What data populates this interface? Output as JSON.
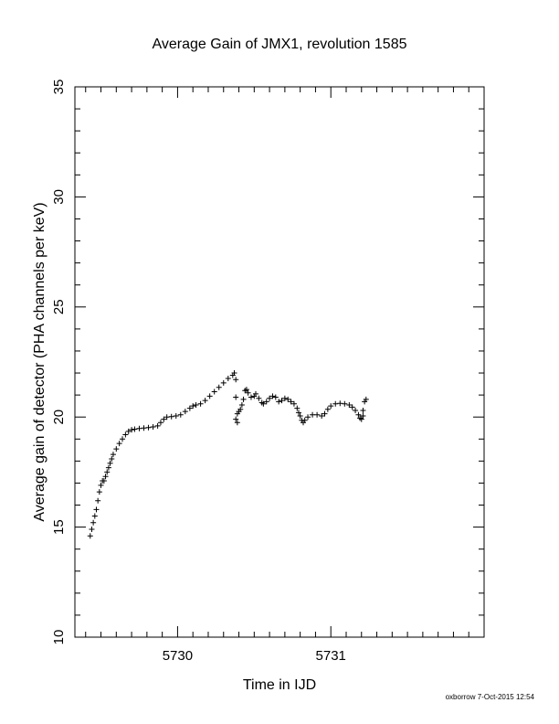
{
  "chart_data": {
    "type": "scatter",
    "title": "Average Gain of JMX1, revolution 1585",
    "xlabel": "Time in IJD",
    "ylabel": "Average gain of detector (PHA channels per keV)",
    "xlim": [
      5729.33,
      5732.0
    ],
    "ylim": [
      10,
      35
    ],
    "x_ticks": [
      5730,
      5731
    ],
    "y_ticks": [
      10,
      15,
      20,
      25,
      30,
      35
    ],
    "grid": false,
    "marker": "+",
    "color": "#000000",
    "series": [
      {
        "points": [
          [
            5729.43,
            14.6
          ],
          [
            5729.44,
            14.9
          ],
          [
            5729.45,
            15.2
          ],
          [
            5729.46,
            15.5
          ],
          [
            5729.47,
            15.8
          ],
          [
            5729.48,
            16.2
          ],
          [
            5729.49,
            16.6
          ],
          [
            5729.5,
            16.9
          ],
          [
            5729.51,
            17.1
          ],
          [
            5729.52,
            17.1
          ],
          [
            5729.53,
            17.3
          ],
          [
            5729.54,
            17.5
          ],
          [
            5729.55,
            17.7
          ],
          [
            5729.56,
            17.9
          ],
          [
            5729.57,
            18.1
          ],
          [
            5729.58,
            18.3
          ],
          [
            5729.6,
            18.55
          ],
          [
            5729.62,
            18.8
          ],
          [
            5729.64,
            19.0
          ],
          [
            5729.66,
            19.2
          ],
          [
            5729.68,
            19.35
          ],
          [
            5729.7,
            19.42
          ],
          [
            5729.72,
            19.45
          ],
          [
            5729.75,
            19.48
          ],
          [
            5729.78,
            19.5
          ],
          [
            5729.81,
            19.52
          ],
          [
            5729.84,
            19.55
          ],
          [
            5729.87,
            19.6
          ],
          [
            5729.89,
            19.75
          ],
          [
            5729.91,
            19.9
          ],
          [
            5729.93,
            20.0
          ],
          [
            5729.96,
            20.02
          ],
          [
            5729.99,
            20.05
          ],
          [
            5730.02,
            20.1
          ],
          [
            5730.05,
            20.25
          ],
          [
            5730.08,
            20.4
          ],
          [
            5730.1,
            20.5
          ],
          [
            5730.12,
            20.55
          ],
          [
            5730.15,
            20.6
          ],
          [
            5730.18,
            20.75
          ],
          [
            5730.21,
            20.95
          ],
          [
            5730.24,
            21.15
          ],
          [
            5730.27,
            21.35
          ],
          [
            5730.3,
            21.55
          ],
          [
            5730.33,
            21.75
          ],
          [
            5730.36,
            21.9
          ],
          [
            5730.37,
            22.0
          ],
          [
            5730.38,
            21.7
          ],
          [
            5730.38,
            20.9
          ],
          [
            5730.38,
            19.9
          ],
          [
            5730.39,
            19.75
          ],
          [
            5730.39,
            20.15
          ],
          [
            5730.4,
            20.25
          ],
          [
            5730.41,
            20.35
          ],
          [
            5730.42,
            20.55
          ],
          [
            5730.43,
            20.8
          ],
          [
            5730.44,
            21.2
          ],
          [
            5730.45,
            21.25
          ],
          [
            5730.46,
            21.1
          ],
          [
            5730.48,
            20.9
          ],
          [
            5730.5,
            20.95
          ],
          [
            5730.51,
            21.05
          ],
          [
            5730.53,
            20.85
          ],
          [
            5730.55,
            20.65
          ],
          [
            5730.56,
            20.6
          ],
          [
            5730.58,
            20.7
          ],
          [
            5730.6,
            20.85
          ],
          [
            5730.62,
            20.95
          ],
          [
            5730.64,
            20.9
          ],
          [
            5730.66,
            20.7
          ],
          [
            5730.68,
            20.75
          ],
          [
            5730.7,
            20.85
          ],
          [
            5730.72,
            20.8
          ],
          [
            5730.74,
            20.7
          ],
          [
            5730.76,
            20.6
          ],
          [
            5730.78,
            20.4
          ],
          [
            5730.79,
            20.2
          ],
          [
            5730.8,
            20.05
          ],
          [
            5730.81,
            19.85
          ],
          [
            5730.82,
            19.75
          ],
          [
            5730.83,
            19.85
          ],
          [
            5730.85,
            20.0
          ],
          [
            5730.88,
            20.1
          ],
          [
            5730.91,
            20.1
          ],
          [
            5730.94,
            20.05
          ],
          [
            5730.96,
            20.15
          ],
          [
            5730.98,
            20.35
          ],
          [
            5731.0,
            20.5
          ],
          [
            5731.03,
            20.6
          ],
          [
            5731.06,
            20.62
          ],
          [
            5731.09,
            20.6
          ],
          [
            5731.12,
            20.55
          ],
          [
            5731.14,
            20.45
          ],
          [
            5731.16,
            20.3
          ],
          [
            5731.18,
            20.1
          ],
          [
            5731.19,
            19.95
          ],
          [
            5731.2,
            19.9
          ],
          [
            5731.21,
            20.05
          ],
          [
            5731.21,
            20.3
          ],
          [
            5731.22,
            20.7
          ],
          [
            5731.23,
            20.8
          ]
        ]
      }
    ]
  },
  "footer": {
    "text": "oxborrow  7-Oct-2015 12:54"
  }
}
